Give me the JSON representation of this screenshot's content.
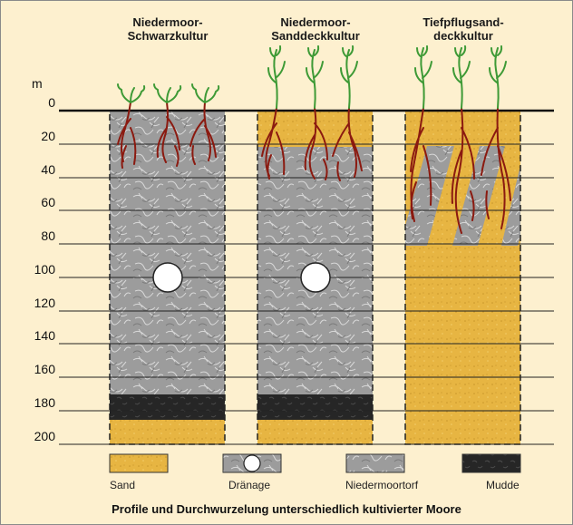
{
  "titles": {
    "col1": [
      "Niedermoor-",
      "Schwarzkultur"
    ],
    "col2": [
      "Niedermoor-",
      "Sanddeckkultur"
    ],
    "col3": [
      "Tiefpflugsand-",
      "deckkultur"
    ]
  },
  "axis": {
    "unit": "m",
    "ticks": [
      "0",
      "20",
      "40",
      "60",
      "80",
      "100",
      "120",
      "140",
      "160",
      "180",
      "200"
    ]
  },
  "legend": {
    "sand": "Sand",
    "drainage": "Dränage",
    "peat": "Niedermoortorf",
    "mud": "Mudde"
  },
  "caption": "Profile und Durchwurzelung unterschiedlich kultivierter Moore",
  "colors": {
    "background": "#fdf0cf",
    "sand": "#e8b640",
    "peat": "#9a9a9a",
    "mud": "#262626",
    "root": "#8b1a10",
    "plant": "#3e9a36"
  }
}
